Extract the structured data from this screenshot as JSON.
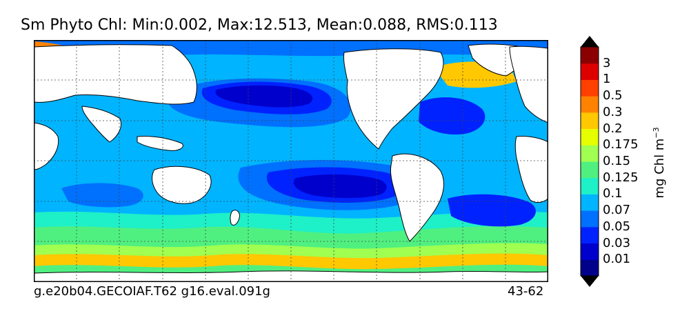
{
  "title": "Sm Phyto Chl: Min:0.002, Max:12.513, Mean:0.088, RMS:0.113",
  "footer_left": "g.e20b04.GECOIAF.T62 g16.eval.091g",
  "footer_right": "43-62",
  "colorbar": {
    "unit_base": "mg Chl m",
    "unit_exponent": "−3",
    "levels": [
      "0.01",
      "0.03",
      "0.05",
      "0.07",
      "0.1",
      "0.125",
      "0.15",
      "0.175",
      "0.2",
      "0.3",
      "0.5",
      "1",
      "3"
    ],
    "colors": [
      "#00008b",
      "#0000cd",
      "#0022ff",
      "#0070ff",
      "#00b4ff",
      "#1ef0c8",
      "#50f080",
      "#a0ff50",
      "#e6ff00",
      "#ffc800",
      "#ff8200",
      "#ff4000",
      "#dc0000",
      "#8b0000"
    ]
  }
}
